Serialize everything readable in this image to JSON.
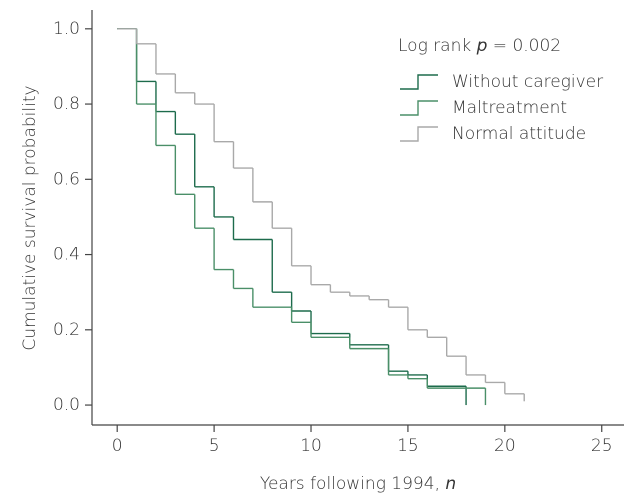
{
  "chart_data": {
    "type": "step",
    "x_label": {
      "text": "Years following 1994, ",
      "var": "n"
    },
    "y_label": "Cumulative survival probability",
    "annotation": {
      "prefix": "Log rank ",
      "var": "p",
      "suffix": " = 0.002"
    },
    "xlim": [
      -1.3,
      26.2
    ],
    "ylim": [
      -0.053,
      1.05
    ],
    "xticks": [
      0,
      5,
      10,
      15,
      20,
      25
    ],
    "yticks": [
      {
        "value": 0,
        "label": "0.0"
      },
      {
        "value": 0.2,
        "label": "0.2"
      },
      {
        "value": 0.4,
        "label": "0.4"
      },
      {
        "value": 0.6,
        "label": "0.6"
      },
      {
        "value": 0.8,
        "label": "0.8"
      },
      {
        "value": 1,
        "label": "1.0"
      }
    ],
    "series": [
      {
        "name": "Without caregiver",
        "color": "#1d6b4c",
        "x": [
          0,
          1,
          2,
          3,
          4,
          5,
          6,
          8,
          9,
          10,
          12,
          14,
          15,
          16,
          18
        ],
        "values": [
          1.0,
          0.86,
          0.78,
          0.72,
          0.58,
          0.5,
          0.44,
          0.3,
          0.25,
          0.19,
          0.16,
          0.09,
          0.08,
          0.05,
          0.0
        ]
      },
      {
        "name": "Maltreatment",
        "color": "#4a8f68",
        "x": [
          0,
          1,
          2,
          3,
          4,
          5,
          6,
          7,
          9,
          10,
          12,
          14,
          15,
          16,
          19
        ],
        "values": [
          1.0,
          0.8,
          0.69,
          0.56,
          0.47,
          0.36,
          0.31,
          0.26,
          0.22,
          0.18,
          0.15,
          0.08,
          0.07,
          0.045,
          0.0
        ]
      },
      {
        "name": "Normal attitude",
        "color": "#a9a9a9",
        "x": [
          0,
          1,
          2,
          3,
          4,
          5,
          6,
          7,
          8,
          9,
          10,
          11,
          12,
          13,
          14,
          15,
          16,
          17,
          18,
          19,
          20,
          21
        ],
        "values": [
          1.0,
          0.96,
          0.88,
          0.83,
          0.8,
          0.7,
          0.63,
          0.54,
          0.47,
          0.37,
          0.32,
          0.3,
          0.29,
          0.28,
          0.26,
          0.2,
          0.18,
          0.13,
          0.08,
          0.06,
          0.03,
          0.01
        ]
      }
    ]
  }
}
